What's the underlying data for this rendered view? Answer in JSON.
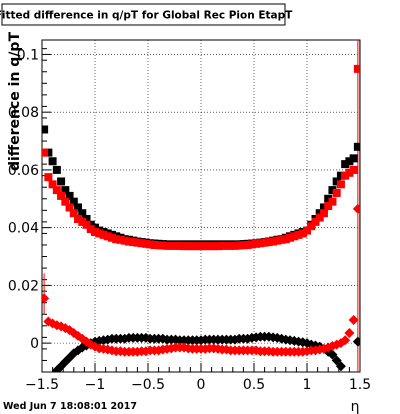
{
  "chart_data": {
    "type": "scatter",
    "title": "Fitted difference in q/pT for Global Rec Pion EtapT",
    "ylabel": "difference in q/pT",
    "xlabel": "η",
    "xlim": [
      -1.5,
      1.5
    ],
    "ylim": [
      -0.01,
      0.105
    ],
    "x_ticks": [
      "−1.5",
      "−1",
      "−0.5",
      "0",
      "0.5",
      "1",
      "1.5"
    ],
    "x_tick_values": [
      -1.5,
      -1,
      -0.5,
      0,
      0.5,
      1,
      1.5
    ],
    "y_ticks": [
      "0",
      "0.02",
      "0.04",
      "0.06",
      "0.08",
      "0.1"
    ],
    "y_tick_values": [
      0,
      0.02,
      0.04,
      0.06,
      0.08,
      0.1
    ],
    "grid": true,
    "series": [
      {
        "color": "#000000",
        "marker": "square",
        "x": [
          -1.48,
          -1.44,
          -1.4,
          -1.36,
          -1.32,
          -1.28,
          -1.24,
          -1.2,
          -1.16,
          -1.12,
          -1.08,
          -1.04,
          -1.0,
          -0.96,
          -0.92,
          -0.88,
          -0.84,
          -0.8,
          -0.76,
          -0.72,
          -0.68,
          -0.64,
          -0.6,
          -0.56,
          -0.52,
          -0.48,
          -0.44,
          -0.4,
          -0.36,
          -0.32,
          -0.28,
          -0.24,
          -0.2,
          -0.16,
          -0.12,
          -0.08,
          -0.04,
          0.0,
          0.04,
          0.08,
          0.12,
          0.16,
          0.2,
          0.24,
          0.28,
          0.32,
          0.36,
          0.4,
          0.44,
          0.48,
          0.52,
          0.56,
          0.6,
          0.64,
          0.68,
          0.72,
          0.76,
          0.8,
          0.84,
          0.88,
          0.92,
          0.96,
          1.0,
          1.04,
          1.08,
          1.12,
          1.16,
          1.2,
          1.24,
          1.28,
          1.32,
          1.36,
          1.4,
          1.44,
          1.48
        ],
        "y": [
          0.074,
          0.066,
          0.063,
          0.06,
          0.056,
          0.053,
          0.051,
          0.049,
          0.047,
          0.045,
          0.043,
          0.041,
          0.04,
          0.039,
          0.0385,
          0.038,
          0.0375,
          0.037,
          0.0365,
          0.036,
          0.0358,
          0.0355,
          0.0352,
          0.035,
          0.0348,
          0.0346,
          0.0345,
          0.0344,
          0.0343,
          0.0342,
          0.0342,
          0.0342,
          0.0342,
          0.0342,
          0.0342,
          0.0342,
          0.0342,
          0.0342,
          0.0342,
          0.0342,
          0.0342,
          0.0342,
          0.0342,
          0.0342,
          0.0342,
          0.0342,
          0.0342,
          0.0343,
          0.0344,
          0.0345,
          0.0346,
          0.0348,
          0.035,
          0.0352,
          0.0355,
          0.0358,
          0.036,
          0.0365,
          0.037,
          0.0375,
          0.038,
          0.0385,
          0.039,
          0.041,
          0.043,
          0.045,
          0.047,
          0.05,
          0.053,
          0.056,
          0.058,
          0.062,
          0.063,
          0.064,
          0.068
        ]
      },
      {
        "color": "#ff0000",
        "marker": "square",
        "x": [
          -1.48,
          -1.44,
          -1.4,
          -1.36,
          -1.32,
          -1.28,
          -1.24,
          -1.2,
          -1.16,
          -1.12,
          -1.08,
          -1.04,
          -1.0,
          -0.96,
          -0.92,
          -0.88,
          -0.84,
          -0.8,
          -0.76,
          -0.72,
          -0.68,
          -0.64,
          -0.6,
          -0.56,
          -0.52,
          -0.48,
          -0.44,
          -0.4,
          -0.36,
          -0.32,
          -0.28,
          -0.24,
          -0.2,
          -0.16,
          -0.12,
          -0.08,
          -0.04,
          0.0,
          0.04,
          0.08,
          0.12,
          0.16,
          0.2,
          0.24,
          0.28,
          0.32,
          0.36,
          0.4,
          0.44,
          0.48,
          0.52,
          0.56,
          0.6,
          0.64,
          0.68,
          0.72,
          0.76,
          0.8,
          0.84,
          0.88,
          0.92,
          0.96,
          1.0,
          1.04,
          1.08,
          1.12,
          1.16,
          1.2,
          1.24,
          1.28,
          1.32,
          1.36,
          1.4,
          1.44,
          1.48
        ],
        "y": [
          0.066,
          0.0575,
          0.055,
          0.053,
          0.051,
          0.049,
          0.047,
          0.045,
          0.043,
          0.042,
          0.041,
          0.0395,
          0.0385,
          0.038,
          0.0375,
          0.037,
          0.0365,
          0.036,
          0.0358,
          0.0355,
          0.0352,
          0.035,
          0.0348,
          0.0346,
          0.0344,
          0.0342,
          0.034,
          0.0339,
          0.0338,
          0.0337,
          0.0337,
          0.0337,
          0.0337,
          0.0336,
          0.0336,
          0.0336,
          0.0336,
          0.0336,
          0.0336,
          0.0336,
          0.0336,
          0.0336,
          0.0337,
          0.0337,
          0.0337,
          0.0337,
          0.0338,
          0.0339,
          0.034,
          0.0342,
          0.0344,
          0.0346,
          0.0348,
          0.035,
          0.0352,
          0.0355,
          0.0358,
          0.036,
          0.0365,
          0.037,
          0.0375,
          0.038,
          0.039,
          0.0405,
          0.042,
          0.0435,
          0.045,
          0.0475,
          0.049,
          0.052,
          0.055,
          0.058,
          0.059,
          0.06,
          0.095
        ]
      },
      {
        "color": "#000000",
        "marker": "diamond",
        "x": [
          -1.48,
          -1.44,
          -1.4,
          -1.36,
          -1.32,
          -1.28,
          -1.24,
          -1.2,
          -1.16,
          -1.12,
          -1.08,
          -1.04,
          -1.0,
          -0.96,
          -0.92,
          -0.88,
          -0.84,
          -0.8,
          -0.76,
          -0.72,
          -0.68,
          -0.64,
          -0.6,
          -0.56,
          -0.52,
          -0.48,
          -0.44,
          -0.4,
          -0.36,
          -0.32,
          -0.28,
          -0.24,
          -0.2,
          -0.16,
          -0.12,
          -0.08,
          -0.04,
          0.0,
          0.04,
          0.08,
          0.12,
          0.16,
          0.2,
          0.24,
          0.28,
          0.32,
          0.36,
          0.4,
          0.44,
          0.48,
          0.52,
          0.56,
          0.6,
          0.64,
          0.68,
          0.72,
          0.76,
          0.8,
          0.84,
          0.88,
          0.92,
          0.96,
          1.0,
          1.04,
          1.08,
          1.12,
          1.16,
          1.2,
          1.24,
          1.28,
          1.32,
          1.36,
          1.4,
          1.44,
          1.48
        ],
        "y": [
          -0.016,
          -0.014,
          -0.012,
          -0.0095,
          -0.008,
          -0.0065,
          -0.005,
          -0.0035,
          -0.0025,
          -0.0015,
          -0.0008,
          0.0,
          0.0005,
          0.0008,
          0.001,
          0.0012,
          0.0015,
          0.0015,
          0.0015,
          0.0015,
          0.0018,
          0.0018,
          0.0018,
          0.0018,
          0.0018,
          0.0015,
          0.0015,
          0.0015,
          0.0015,
          0.0012,
          0.0012,
          0.0012,
          0.001,
          0.001,
          0.001,
          0.001,
          0.001,
          0.001,
          0.0012,
          0.0012,
          0.0012,
          0.0012,
          0.0012,
          0.0012,
          0.0012,
          0.0012,
          0.0015,
          0.0015,
          0.0015,
          0.0018,
          0.002,
          0.0022,
          0.0022,
          0.0022,
          0.002,
          0.0018,
          0.0015,
          0.0012,
          0.001,
          0.0008,
          0.0005,
          0.0003,
          0.0,
          -0.0005,
          -0.0008,
          -0.0012,
          -0.002,
          -0.003,
          -0.004,
          -0.006,
          -0.008,
          -0.012,
          -0.0145,
          -0.017,
          0.0005
        ]
      },
      {
        "color": "#ff0000",
        "marker": "diamond",
        "x": [
          -1.48,
          -1.44,
          -1.4,
          -1.36,
          -1.32,
          -1.28,
          -1.24,
          -1.2,
          -1.16,
          -1.12,
          -1.08,
          -1.04,
          -1.0,
          -0.96,
          -0.92,
          -0.88,
          -0.84,
          -0.8,
          -0.76,
          -0.72,
          -0.68,
          -0.64,
          -0.6,
          -0.56,
          -0.52,
          -0.48,
          -0.44,
          -0.4,
          -0.36,
          -0.32,
          -0.28,
          -0.24,
          -0.2,
          -0.16,
          -0.12,
          -0.08,
          -0.04,
          0.0,
          0.04,
          0.08,
          0.12,
          0.16,
          0.2,
          0.24,
          0.28,
          0.32,
          0.36,
          0.4,
          0.44,
          0.48,
          0.52,
          0.56,
          0.6,
          0.64,
          0.68,
          0.72,
          0.76,
          0.8,
          0.84,
          0.88,
          0.92,
          0.96,
          1.0,
          1.04,
          1.08,
          1.12,
          1.16,
          1.2,
          1.24,
          1.28,
          1.32,
          1.36,
          1.4,
          1.44,
          1.48
        ],
        "y": [
          0.0155,
          0.0075,
          0.0068,
          0.0062,
          0.0058,
          0.0052,
          0.0045,
          0.0035,
          0.0025,
          0.0015,
          0.0005,
          -0.0005,
          -0.0012,
          -0.0018,
          -0.002,
          -0.0022,
          -0.0025,
          -0.0028,
          -0.0028,
          -0.003,
          -0.003,
          -0.003,
          -0.003,
          -0.0028,
          -0.0028,
          -0.0025,
          -0.0025,
          -0.0025,
          -0.0022,
          -0.002,
          -0.0018,
          -0.0015,
          -0.0015,
          -0.0015,
          -0.0018,
          -0.002,
          -0.002,
          -0.002,
          -0.002,
          -0.0018,
          -0.0018,
          -0.002,
          -0.0022,
          -0.0022,
          -0.0025,
          -0.0025,
          -0.0025,
          -0.0025,
          -0.0025,
          -0.0025,
          -0.0025,
          -0.0028,
          -0.0028,
          -0.0028,
          -0.003,
          -0.003,
          -0.003,
          -0.003,
          -0.003,
          -0.003,
          -0.003,
          -0.003,
          -0.0028,
          -0.0025,
          -0.0025,
          -0.0022,
          -0.002,
          -0.0015,
          -0.001,
          -0.0005,
          0.0,
          0.001,
          0.0035,
          0.008,
          0.0465
        ]
      }
    ]
  },
  "footer": {
    "timestamp": "Wed Jun  7 18:08:01 2017"
  }
}
